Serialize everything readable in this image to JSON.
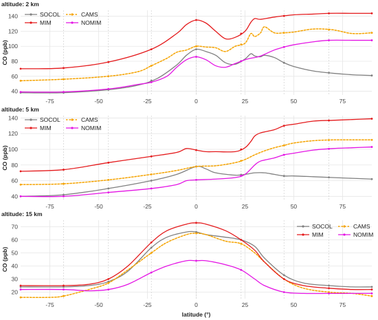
{
  "chart_data": [
    {
      "type": "line",
      "title": "altitude: 2 km",
      "xlabel": "",
      "ylabel": "CO (ppb)",
      "xlim": [
        -90,
        90
      ],
      "ylim": [
        35,
        148
      ],
      "xticks": [
        -75,
        -50,
        -25,
        0,
        25,
        50,
        75
      ],
      "yticks": [
        40,
        60,
        80,
        100,
        120,
        140
      ],
      "vlines": [
        -68,
        -45,
        -23,
        0,
        23,
        45,
        68
      ],
      "legend": "top-left",
      "series": [
        {
          "name": "SOCOL",
          "color": "#808080",
          "dash": false,
          "x": [
            -90,
            -68,
            -45,
            -30,
            -20,
            -10,
            -5,
            0,
            5,
            10,
            15,
            20,
            25,
            28,
            30,
            33,
            35,
            40,
            45,
            50,
            60,
            70,
            80,
            90
          ],
          "y": [
            38,
            38,
            42,
            48,
            57,
            75,
            88,
            96,
            93,
            88,
            78,
            76,
            83,
            90,
            87,
            86,
            88,
            85,
            78,
            73,
            67,
            64,
            62,
            61
          ]
        },
        {
          "name": "CAMS",
          "color": "#f5a300",
          "dash": true,
          "x": [
            -90,
            -68,
            -45,
            -30,
            -23,
            -15,
            -10,
            -5,
            0,
            5,
            10,
            15,
            20,
            25,
            28,
            30,
            33,
            35,
            40,
            45,
            50,
            60,
            70,
            80,
            90
          ],
          "y": [
            54,
            56,
            60,
            66,
            74,
            84,
            92,
            95,
            100,
            99,
            98,
            93,
            100,
            104,
            117,
            113,
            118,
            126,
            118,
            118,
            119,
            123,
            122,
            117,
            118
          ]
        },
        {
          "name": "MIM",
          "color": "#e41a1c",
          "dash": false,
          "x": [
            -90,
            -68,
            -45,
            -23,
            -10,
            -5,
            0,
            5,
            10,
            15,
            20,
            25,
            28,
            30,
            33,
            40,
            50,
            60,
            68,
            80,
            90
          ],
          "y": [
            70,
            71,
            79,
            96,
            117,
            129,
            135,
            131,
            120,
            110,
            112,
            120,
            132,
            137,
            136,
            139,
            142,
            143,
            144,
            144,
            144
          ]
        },
        {
          "name": "NOMIM",
          "color": "#e415e4",
          "dash": false,
          "x": [
            -90,
            -68,
            -45,
            -30,
            -23,
            -15,
            -10,
            -5,
            0,
            5,
            10,
            15,
            20,
            25,
            28,
            30,
            33,
            40,
            45,
            50,
            60,
            68,
            80,
            90
          ],
          "y": [
            39,
            39,
            43,
            49,
            52,
            60,
            72,
            82,
            86,
            82,
            74,
            72,
            77,
            82,
            84,
            85,
            87,
            95,
            99,
            102,
            106,
            108,
            108,
            108
          ]
        }
      ]
    },
    {
      "type": "line",
      "title": "altitude: 5 km",
      "xlabel": "",
      "ylabel": "CO (ppb)",
      "xlim": [
        -90,
        90
      ],
      "ylim": [
        35,
        143
      ],
      "xticks": [
        -75,
        -50,
        -25,
        0,
        25,
        50,
        75
      ],
      "yticks": [
        40,
        60,
        80,
        100,
        120,
        140
      ],
      "vlines": [
        -68,
        -45,
        -23,
        0,
        23,
        45,
        68
      ],
      "legend": "top-left",
      "series": [
        {
          "name": "SOCOL",
          "color": "#808080",
          "dash": false,
          "x": [
            -90,
            -68,
            -45,
            -23,
            -10,
            0,
            5,
            10,
            20,
            25,
            30,
            35,
            40,
            45,
            50,
            60,
            70,
            80,
            90
          ],
          "y": [
            40,
            42,
            50,
            60,
            68,
            78,
            75,
            70,
            67,
            68,
            70,
            70,
            68,
            66,
            66,
            65,
            64,
            63,
            62
          ]
        },
        {
          "name": "CAMS",
          "color": "#f5a300",
          "dash": true,
          "x": [
            -90,
            -68,
            -45,
            -23,
            -10,
            0,
            10,
            20,
            25,
            30,
            35,
            40,
            45,
            50,
            60,
            70,
            80,
            90
          ],
          "y": [
            55,
            56,
            61,
            68,
            73,
            78,
            79,
            83,
            87,
            93,
            98,
            102,
            105,
            108,
            111,
            112,
            112,
            112
          ]
        },
        {
          "name": "MIM",
          "color": "#e41a1c",
          "dash": false,
          "x": [
            -90,
            -68,
            -45,
            -23,
            -10,
            -5,
            0,
            5,
            10,
            20,
            25,
            28,
            30,
            33,
            40,
            45,
            50,
            60,
            70,
            80,
            90
          ],
          "y": [
            72,
            74,
            83,
            91,
            96,
            101,
            99,
            97,
            97,
            97,
            102,
            110,
            117,
            121,
            125,
            130,
            132,
            136,
            137,
            138,
            139
          ]
        },
        {
          "name": "NOMIM",
          "color": "#e415e4",
          "dash": false,
          "x": [
            -90,
            -68,
            -45,
            -23,
            -10,
            -5,
            0,
            10,
            20,
            25,
            30,
            33,
            40,
            45,
            50,
            60,
            70,
            80,
            90
          ],
          "y": [
            40,
            40,
            45,
            50,
            55,
            60,
            61,
            62,
            64,
            68,
            80,
            85,
            89,
            93,
            95,
            99,
            101,
            102,
            103
          ]
        }
      ]
    },
    {
      "type": "line",
      "title": "altitude: 15 km",
      "xlabel": "latitude (°)",
      "ylabel": "CO (ppb)",
      "xlim": [
        -90,
        90
      ],
      "ylim": [
        15,
        75
      ],
      "xticks": [
        -75,
        -50,
        -25,
        0,
        25,
        50,
        75
      ],
      "yticks": [
        20,
        30,
        40,
        50,
        60,
        70
      ],
      "vlines": [
        -68,
        -45,
        -23,
        0,
        23,
        45,
        68
      ],
      "legend": "top-right",
      "series": [
        {
          "name": "SOCOL",
          "color": "#808080",
          "dash": false,
          "x": [
            -90,
            -68,
            -55,
            -45,
            -35,
            -23,
            -15,
            -5,
            0,
            5,
            15,
            23,
            30,
            35,
            45,
            55,
            68,
            80,
            90
          ],
          "y": [
            24,
            24,
            25,
            28,
            36,
            54,
            62,
            66,
            66,
            64,
            62,
            60,
            55,
            46,
            33,
            27,
            25,
            24,
            24
          ]
        },
        {
          "name": "CAMS",
          "color": "#f5a300",
          "dash": true,
          "x": [
            -90,
            -75,
            -68,
            -55,
            -45,
            -35,
            -23,
            -15,
            -5,
            0,
            5,
            15,
            23,
            30,
            35,
            45,
            55,
            68,
            80,
            90
          ],
          "y": [
            16,
            16,
            17,
            22,
            27,
            37,
            50,
            58,
            64,
            65,
            64,
            59,
            57,
            50,
            43,
            30,
            23,
            20,
            19,
            17
          ]
        },
        {
          "name": "MIM",
          "color": "#e41a1c",
          "dash": false,
          "x": [
            -90,
            -68,
            -55,
            -45,
            -35,
            -23,
            -15,
            -5,
            0,
            5,
            15,
            23,
            30,
            35,
            45,
            55,
            68,
            80,
            90
          ],
          "y": [
            25,
            25,
            26,
            30,
            40,
            58,
            67,
            72,
            73,
            72,
            67,
            60,
            52,
            43,
            30,
            25,
            23,
            22,
            22
          ]
        },
        {
          "name": "NOMIM",
          "color": "#e415e4",
          "dash": false,
          "x": [
            -90,
            -68,
            -55,
            -45,
            -35,
            -23,
            -15,
            -5,
            0,
            5,
            15,
            23,
            30,
            35,
            45,
            55,
            68,
            80,
            90
          ],
          "y": [
            22,
            22,
            21,
            22,
            26,
            35,
            40,
            44,
            44,
            44,
            41,
            37,
            30,
            25,
            20,
            19,
            19,
            19,
            19
          ]
        }
      ]
    }
  ]
}
